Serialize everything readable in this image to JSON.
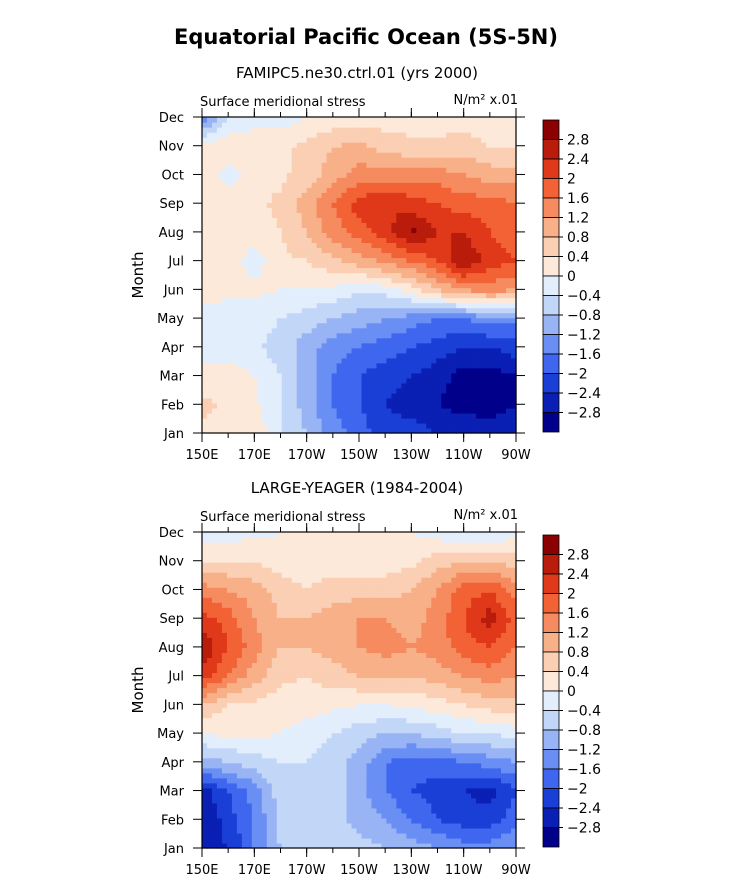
{
  "title": "Equatorial Pacific Ocean (5S-5N)",
  "colors": {
    "scale": [
      "#00008b",
      "#0a1fb4",
      "#1a3fd6",
      "#3f66ee",
      "#6a8ff4",
      "#98b4f4",
      "#c2d6f8",
      "#e2eefb",
      "#fde9d9",
      "#fbcfb4",
      "#f8b089",
      "#f58b5f",
      "#f26234",
      "#e0391a",
      "#b91c0b",
      "#8b0000"
    ],
    "frame": "#000000"
  },
  "colorbar": {
    "labels": [
      "2.8",
      "2.4",
      "2",
      "1.6",
      "1.2",
      "0.8",
      "0.4",
      "0",
      "−0.4",
      "−0.8",
      "−1.2",
      "−1.6",
      "−2",
      "−2.4",
      "−2.8"
    ],
    "levels": [
      2.8,
      2.4,
      2.0,
      1.6,
      1.2,
      0.8,
      0.4,
      0,
      -0.4,
      -0.8,
      -1.2,
      -1.6,
      -2.0,
      -2.4,
      -2.8
    ]
  },
  "chart_data": [
    {
      "type": "heatmap",
      "title": "FAMIPC5.ne30.ctrl.01 (yrs 2000)",
      "left_label": "Surface meridional stress",
      "right_label": "N/m² x.01",
      "ylabel": "Month",
      "xlabel": "",
      "x": [
        "150E",
        "160E",
        "170E",
        "180",
        "170W",
        "160W",
        "150W",
        "140W",
        "130W",
        "120W",
        "110W",
        "100W",
        "90W"
      ],
      "x_tick_labels": [
        "150E",
        "170E",
        "170W",
        "150W",
        "130W",
        "110W",
        "90W"
      ],
      "y": [
        "Jan",
        "Feb",
        "Mar",
        "Apr",
        "May",
        "Jun",
        "Jul",
        "Aug",
        "Sep",
        "Oct",
        "Nov",
        "Dec"
      ],
      "grid": false,
      "z": [
        [
          0.3,
          0.4,
          0.3,
          -0.4,
          -0.8,
          -1.4,
          -1.8,
          -2.2,
          -2.2,
          -2.4,
          -2.4,
          -2.6,
          -2.5
        ],
        [
          0.5,
          0.3,
          0.1,
          -0.4,
          -1.0,
          -1.6,
          -2.0,
          -2.4,
          -2.6,
          -2.8,
          -3.0,
          -3.0,
          -2.8
        ],
        [
          0.2,
          0.2,
          0.0,
          -0.4,
          -1.0,
          -1.6,
          -2.0,
          -2.2,
          -2.4,
          -2.6,
          -3.0,
          -3.0,
          -2.8
        ],
        [
          -0.2,
          -0.2,
          -0.3,
          -0.6,
          -1.0,
          -1.4,
          -1.6,
          -1.8,
          -2.0,
          -2.2,
          -2.4,
          -2.4,
          -2.2
        ],
        [
          -0.2,
          -0.2,
          -0.2,
          -0.4,
          -0.6,
          -0.8,
          -1.0,
          -1.2,
          -1.4,
          -1.6,
          -1.6,
          -1.4,
          -1.4
        ],
        [
          0.2,
          0.1,
          0.1,
          0.0,
          0.0,
          -0.1,
          -0.3,
          -0.2,
          0.2,
          0.8,
          1.2,
          1.4,
          1.2
        ],
        [
          0.3,
          0.2,
          -0.2,
          0.3,
          0.4,
          0.7,
          1.0,
          1.3,
          1.6,
          2.0,
          2.8,
          2.2,
          2.0
        ],
        [
          0.4,
          0.2,
          0.2,
          0.4,
          0.8,
          1.4,
          1.8,
          2.2,
          2.9,
          2.4,
          2.4,
          2.0,
          1.8
        ],
        [
          0.4,
          0.3,
          0.3,
          0.5,
          1.0,
          1.6,
          2.2,
          2.4,
          2.2,
          2.0,
          1.8,
          1.8,
          1.6
        ],
        [
          0.3,
          -0.2,
          0.2,
          0.3,
          0.6,
          1.0,
          1.4,
          1.4,
          1.4,
          1.4,
          1.2,
          1.0,
          1.0
        ],
        [
          0.2,
          0.3,
          0.3,
          0.3,
          0.5,
          0.8,
          0.9,
          0.6,
          0.5,
          0.5,
          0.6,
          0.4,
          0.4
        ],
        [
          -1.6,
          -0.4,
          -0.2,
          -0.2,
          0.0,
          0.1,
          0.2,
          0.2,
          0.2,
          0.2,
          0.2,
          0.1,
          0.1
        ]
      ]
    },
    {
      "type": "heatmap",
      "title": "LARGE-YEAGER (1984-2004)",
      "left_label": "Surface meridional stress",
      "right_label": "N/m² x.01",
      "ylabel": "Month",
      "xlabel": "",
      "x": [
        "150E",
        "160E",
        "170E",
        "180",
        "170W",
        "160W",
        "150W",
        "140W",
        "130W",
        "120W",
        "110W",
        "100W",
        "90W"
      ],
      "x_tick_labels": [
        "150E",
        "170E",
        "170W",
        "150W",
        "130W",
        "110W",
        "90W"
      ],
      "y": [
        "Jan",
        "Feb",
        "Mar",
        "Apr",
        "May",
        "Jun",
        "Jul",
        "Aug",
        "Sep",
        "Oct",
        "Nov",
        "Dec"
      ],
      "grid": false,
      "z": [
        [
          -2.6,
          -2.4,
          -1.6,
          -0.8,
          -0.4,
          -0.4,
          -0.6,
          -0.8,
          -1.0,
          -1.2,
          -1.4,
          -1.4,
          -1.2
        ],
        [
          -2.8,
          -2.2,
          -1.6,
          -0.6,
          -0.4,
          -0.6,
          -1.0,
          -1.2,
          -1.6,
          -2.0,
          -2.2,
          -2.2,
          -1.8
        ],
        [
          -2.6,
          -2.0,
          -1.4,
          -0.6,
          -0.4,
          -0.6,
          -1.0,
          -1.6,
          -2.0,
          -2.2,
          -2.4,
          -2.6,
          -2.0
        ],
        [
          -1.0,
          -0.8,
          -0.6,
          -0.4,
          -0.4,
          -0.6,
          -1.0,
          -1.6,
          -1.8,
          -1.8,
          -1.6,
          -1.4,
          -1.2
        ],
        [
          0.0,
          0.1,
          0.1,
          0.0,
          -0.2,
          -0.4,
          -0.6,
          -0.8,
          -0.8,
          -0.6,
          -0.4,
          -0.4,
          -0.2
        ],
        [
          0.8,
          0.4,
          0.3,
          0.2,
          0.2,
          0.1,
          0.0,
          0.0,
          0.1,
          0.2,
          0.4,
          0.6,
          0.6
        ],
        [
          2.2,
          1.6,
          1.0,
          0.5,
          0.4,
          0.6,
          0.8,
          0.8,
          0.8,
          1.0,
          1.2,
          1.4,
          1.2
        ],
        [
          2.8,
          2.0,
          1.4,
          0.8,
          0.8,
          1.0,
          1.2,
          1.4,
          1.2,
          1.4,
          1.8,
          2.0,
          1.6
        ],
        [
          2.2,
          1.8,
          1.2,
          0.8,
          0.8,
          1.0,
          1.2,
          1.2,
          1.0,
          1.4,
          2.0,
          2.6,
          1.8
        ],
        [
          1.4,
          1.2,
          1.0,
          0.6,
          0.4,
          0.6,
          0.6,
          0.6,
          0.8,
          1.2,
          1.8,
          2.0,
          1.4
        ],
        [
          0.4,
          0.4,
          0.4,
          0.2,
          0.1,
          0.2,
          0.2,
          0.2,
          0.3,
          0.6,
          0.8,
          0.8,
          0.6
        ],
        [
          -0.2,
          -0.2,
          -0.1,
          0.0,
          0.0,
          0.0,
          0.0,
          0.1,
          0.0,
          -0.2,
          -0.4,
          -0.3,
          -0.2
        ]
      ]
    }
  ]
}
